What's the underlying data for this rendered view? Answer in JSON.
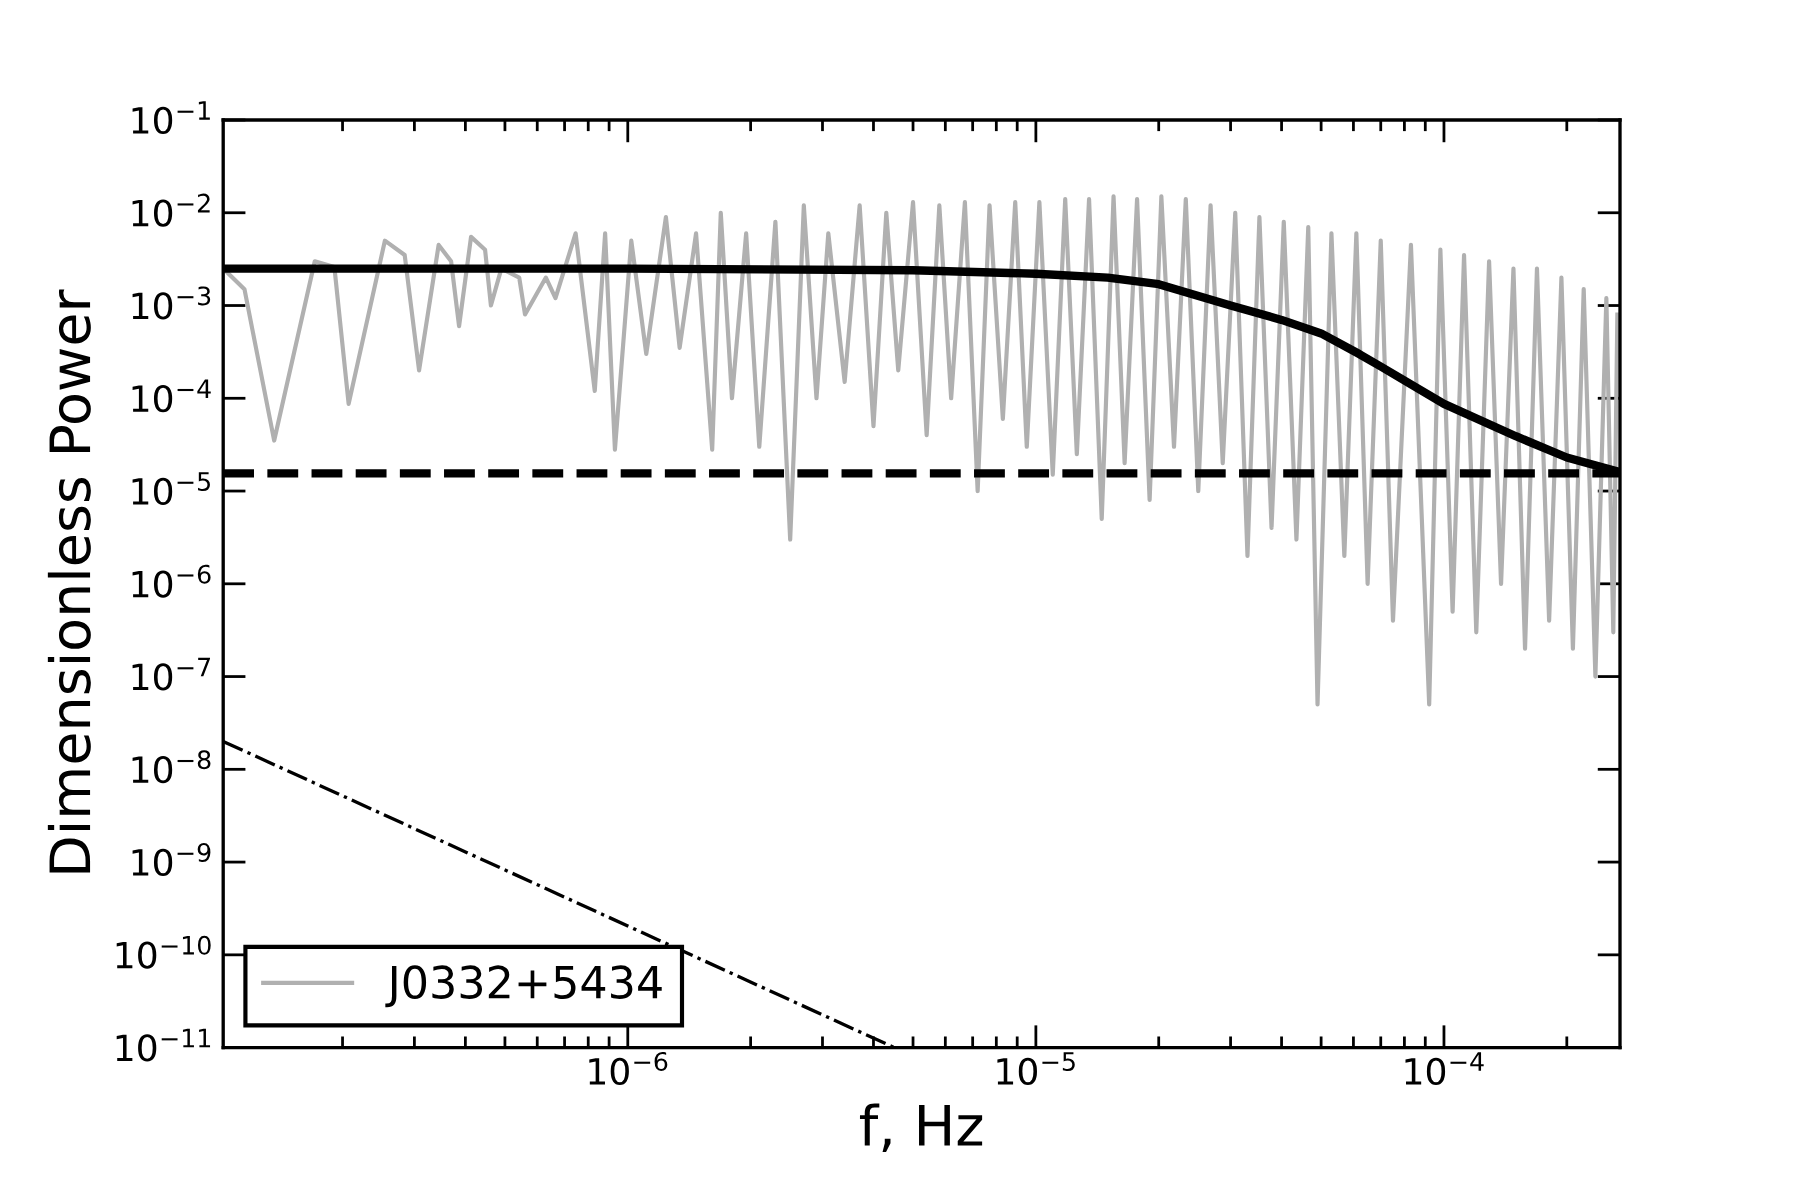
{
  "chart_data": {
    "type": "line",
    "xlabel": "f, Hz",
    "ylabel": "Dimensionless Power",
    "log": "xy",
    "legend": "bottom left",
    "grid": false,
    "xlim": [
      1.02e-07,
      0.00027
    ],
    "ylim": [
      1e-11,
      0.1
    ],
    "xticks": [
      {
        "value": 1e-06,
        "label": "10$^{−6}$"
      },
      {
        "value": 1e-05,
        "label": "10$^{−5}$"
      },
      {
        "value": 0.0001,
        "label": "10$^{−4}$"
      }
    ],
    "yticks": [
      {
        "value": 1e-11,
        "label": "10$^{−11}$"
      },
      {
        "value": 1e-10,
        "label": "10$^{−10}$"
      },
      {
        "value": 1e-09,
        "label": "10$^{−9}$"
      },
      {
        "value": 1e-08,
        "label": "10$^{−8}$"
      },
      {
        "value": 1e-07,
        "label": "10$^{−7}$"
      },
      {
        "value": 1e-06,
        "label": "10$^{−6}$"
      },
      {
        "value": 1e-05,
        "label": "10$^{−5}$"
      },
      {
        "value": 0.0001,
        "label": "10$^{−4}$"
      },
      {
        "value": 0.001,
        "label": "10$^{−3}$"
      },
      {
        "value": 0.01,
        "label": "10$^{−2}$"
      },
      {
        "value": 0.1,
        "label": "10$^{−1}$"
      }
    ],
    "ref_lines": [
      {
        "axis": "y",
        "value": 1.55e-05,
        "label": null,
        "color": "#000000",
        "line_style": "dashed"
      }
    ],
    "series": [
      {
        "name": "J0332+5434",
        "color": "#b0b0b0",
        "line_style": "solid",
        "x": [
          1.02e-07,
          1.15e-07,
          1.36e-07,
          1.71e-07,
          1.91e-07,
          2.07e-07,
          2.54e-07,
          2.84e-07,
          3.08e-07,
          3.44e-07,
          3.69e-07,
          3.86e-07,
          4.13e-07,
          4.47e-07,
          4.62e-07,
          4.9e-07,
          5.42e-07,
          5.6e-07,
          6.3e-07,
          6.65e-07,
          7.45e-07,
          8.3e-07,
          8.8e-07,
          9.3e-07,
          1.02e-06,
          1.11e-06,
          1.24e-06,
          1.34e-06,
          1.47e-06,
          1.61e-06,
          1.69e-06,
          1.8e-06,
          1.95e-06,
          2.1e-06,
          2.3e-06,
          2.5e-06,
          2.7e-06,
          2.9e-06,
          3.1e-06,
          3.4e-06,
          3.7e-06,
          4e-06,
          4.3e-06,
          4.6e-06,
          5e-06,
          5.4e-06,
          5.8e-06,
          6.2e-06,
          6.7e-06,
          7.2e-06,
          7.7e-06,
          8.3e-06,
          8.9e-06,
          9.5e-06,
          1.02e-05,
          1.1e-05,
          1.18e-05,
          1.26e-05,
          1.35e-05,
          1.45e-05,
          1.55e-05,
          1.65e-05,
          1.77e-05,
          1.9e-05,
          2.03e-05,
          2.18e-05,
          2.33e-05,
          2.5e-05,
          2.68e-05,
          2.87e-05,
          3.08e-05,
          3.3e-05,
          3.53e-05,
          3.78e-05,
          4.05e-05,
          4.35e-05,
          4.65e-05,
          4.9e-05,
          5.3e-05,
          5.7e-05,
          6.1e-05,
          6.5e-05,
          7e-05,
          7.5e-05,
          8.3e-05,
          9.2e-05,
          9.8e-05,
          0.000105,
          0.000112,
          0.00012,
          0.000129,
          0.000138,
          0.000148,
          0.000158,
          0.000169,
          0.000181,
          0.000194,
          0.000207,
          0.00022,
          0.000235,
          0.00025,
          0.00026,
          0.000266
        ],
        "values": [
          0.0025,
          0.0015,
          3.5e-05,
          0.003,
          0.0026,
          8.7e-05,
          0.005,
          0.0035,
          0.0002,
          0.0045,
          0.003,
          0.0006,
          0.0055,
          0.004,
          0.001,
          0.0025,
          0.002,
          0.0008,
          0.002,
          0.0012,
          0.006,
          0.00012,
          0.006,
          2.8e-05,
          0.005,
          0.0003,
          0.009,
          0.00035,
          0.006,
          2.8e-05,
          0.01,
          0.0001,
          0.006,
          3e-05,
          0.008,
          3e-06,
          0.012,
          0.0001,
          0.006,
          0.00015,
          0.012,
          5e-05,
          0.01,
          0.0002,
          0.013,
          4e-05,
          0.012,
          0.0001,
          0.013,
          1e-05,
          0.012,
          6e-05,
          0.013,
          3e-05,
          0.013,
          1.5e-05,
          0.014,
          2.5e-05,
          0.014,
          5e-06,
          0.015,
          2e-05,
          0.014,
          8e-06,
          0.015,
          3e-05,
          0.014,
          1e-05,
          0.012,
          2e-05,
          0.01,
          2e-06,
          0.009,
          4e-06,
          0.008,
          3e-06,
          0.007,
          5e-08,
          0.006,
          2e-06,
          0.006,
          1e-06,
          0.005,
          4e-07,
          0.0045,
          5e-08,
          0.004,
          5e-07,
          0.0035,
          3e-07,
          0.003,
          1e-06,
          0.0025,
          2e-07,
          0.0025,
          4e-07,
          0.002,
          2e-07,
          0.0015,
          1e-07,
          0.0012,
          3e-07,
          0.0008
        ]
      },
      {
        "color": "#000000",
        "line_style": "solid",
        "x": [
          1.02e-07,
          1e-06,
          5e-06,
          1e-05,
          1.5e-05,
          2e-05,
          3e-05,
          4e-05,
          5e-05,
          6.2e-05,
          7e-05,
          0.0001,
          0.00015,
          0.0002,
          0.00027
        ],
        "values": [
          0.0025,
          0.0025,
          0.0024,
          0.0022,
          0.002,
          0.0017,
          0.001,
          0.0007,
          0.0005,
          0.0003,
          0.00022,
          8.7e-05,
          3.9e-05,
          2.3e-05,
          1.6e-05
        ]
      },
      {
        "color": "#000000",
        "line_style": "dashdot",
        "x": [
          1.02e-07,
          4.5e-06
        ],
        "values": [
          2e-08,
          1e-11
        ]
      }
    ]
  }
}
